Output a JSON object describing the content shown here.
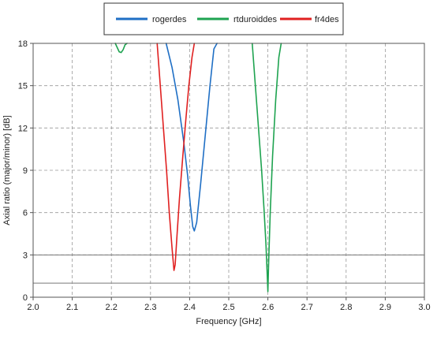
{
  "chart_data": {
    "type": "line",
    "xlabel": "Frequency [GHz]",
    "ylabel": "Axial ratio (major/minor) [dB]",
    "xlim": [
      2.0,
      3.0
    ],
    "ylim": [
      0,
      18
    ],
    "x_ticks": [
      "2.0",
      "2.1",
      "2.2",
      "2.3",
      "2.4",
      "2.5",
      "2.6",
      "2.7",
      "2.8",
      "2.9",
      "3.0"
    ],
    "y_ticks": [
      "0",
      "3",
      "6",
      "9",
      "12",
      "15",
      "18"
    ],
    "grid": true,
    "legend_position": "top-center",
    "reference_lines": [
      3,
      1
    ],
    "series": [
      {
        "name": "rogerdes",
        "color": "#1f6fc5",
        "x": [
          2.34,
          2.355,
          2.37,
          2.385,
          2.395,
          2.402,
          2.408,
          2.412,
          2.418,
          2.428,
          2.44,
          2.452,
          2.462,
          2.47
        ],
        "y": [
          18.0,
          16.3,
          14.0,
          11.0,
          8.6,
          6.5,
          5.0,
          4.7,
          5.3,
          8.0,
          11.5,
          15.0,
          17.6,
          18.0
        ]
      },
      {
        "name": "rtduroiddes",
        "color": "#1ea350",
        "segments": [
          {
            "x": [
              2.21,
              2.215,
              2.22,
              2.225,
              2.23,
              2.235,
              2.24
            ],
            "y": [
              18.0,
              17.7,
              17.4,
              17.35,
              17.55,
              17.9,
              18.0
            ]
          },
          {
            "x": [
              2.56,
              2.568,
              2.576,
              2.584,
              2.59,
              2.595,
              2.598,
              2.6,
              2.602,
              2.606,
              2.612,
              2.62,
              2.628,
              2.634
            ],
            "y": [
              18.0,
              15.0,
              12.0,
              9.0,
              6.3,
              3.8,
              1.8,
              0.4,
              2.5,
              6.0,
              10.0,
              14.0,
              17.0,
              18.0
            ]
          }
        ]
      },
      {
        "name": "fr4des",
        "color": "#e02020",
        "x": [
          2.317,
          2.325,
          2.333,
          2.341,
          2.348,
          2.355,
          2.36,
          2.363,
          2.368,
          2.374,
          2.382,
          2.39,
          2.398,
          2.406,
          2.412
        ],
        "y": [
          18.0,
          15.0,
          12.0,
          9.0,
          6.0,
          3.5,
          1.9,
          2.3,
          4.5,
          7.0,
          9.8,
          12.5,
          15.0,
          17.0,
          18.0
        ]
      }
    ]
  }
}
